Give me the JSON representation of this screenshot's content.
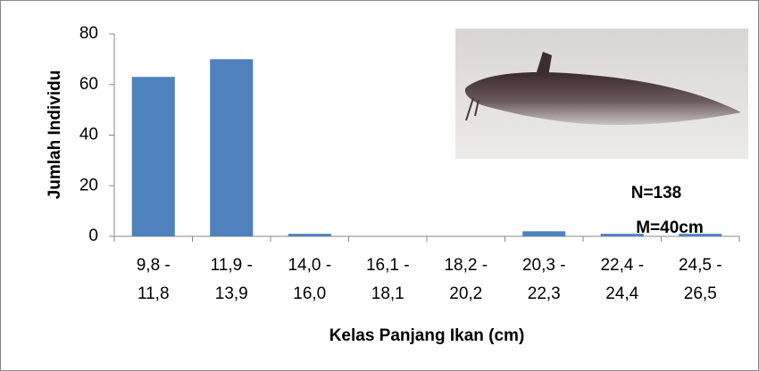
{
  "chart_data": {
    "type": "bar",
    "x_label": "Kelas Panjang Ikan (cm)",
    "y_label": "Jumlah Individu",
    "categories": [
      "9,8 - 11,8",
      "11,9 - 13,9",
      "14,0 - 16,0",
      "16,1 - 18,1",
      "18,2 - 20,2",
      "20,3 - 22,3",
      "22,4 - 24,4",
      "24,5 - 26,5"
    ],
    "values": [
      63,
      70,
      1,
      0,
      0,
      2,
      1,
      1
    ],
    "color": "#4f81bd",
    "ylim": [
      0,
      80
    ],
    "yticks": [
      0,
      20,
      40,
      60,
      80
    ],
    "grid": false,
    "annotations": [
      "N=138",
      "M=40cm"
    ]
  }
}
